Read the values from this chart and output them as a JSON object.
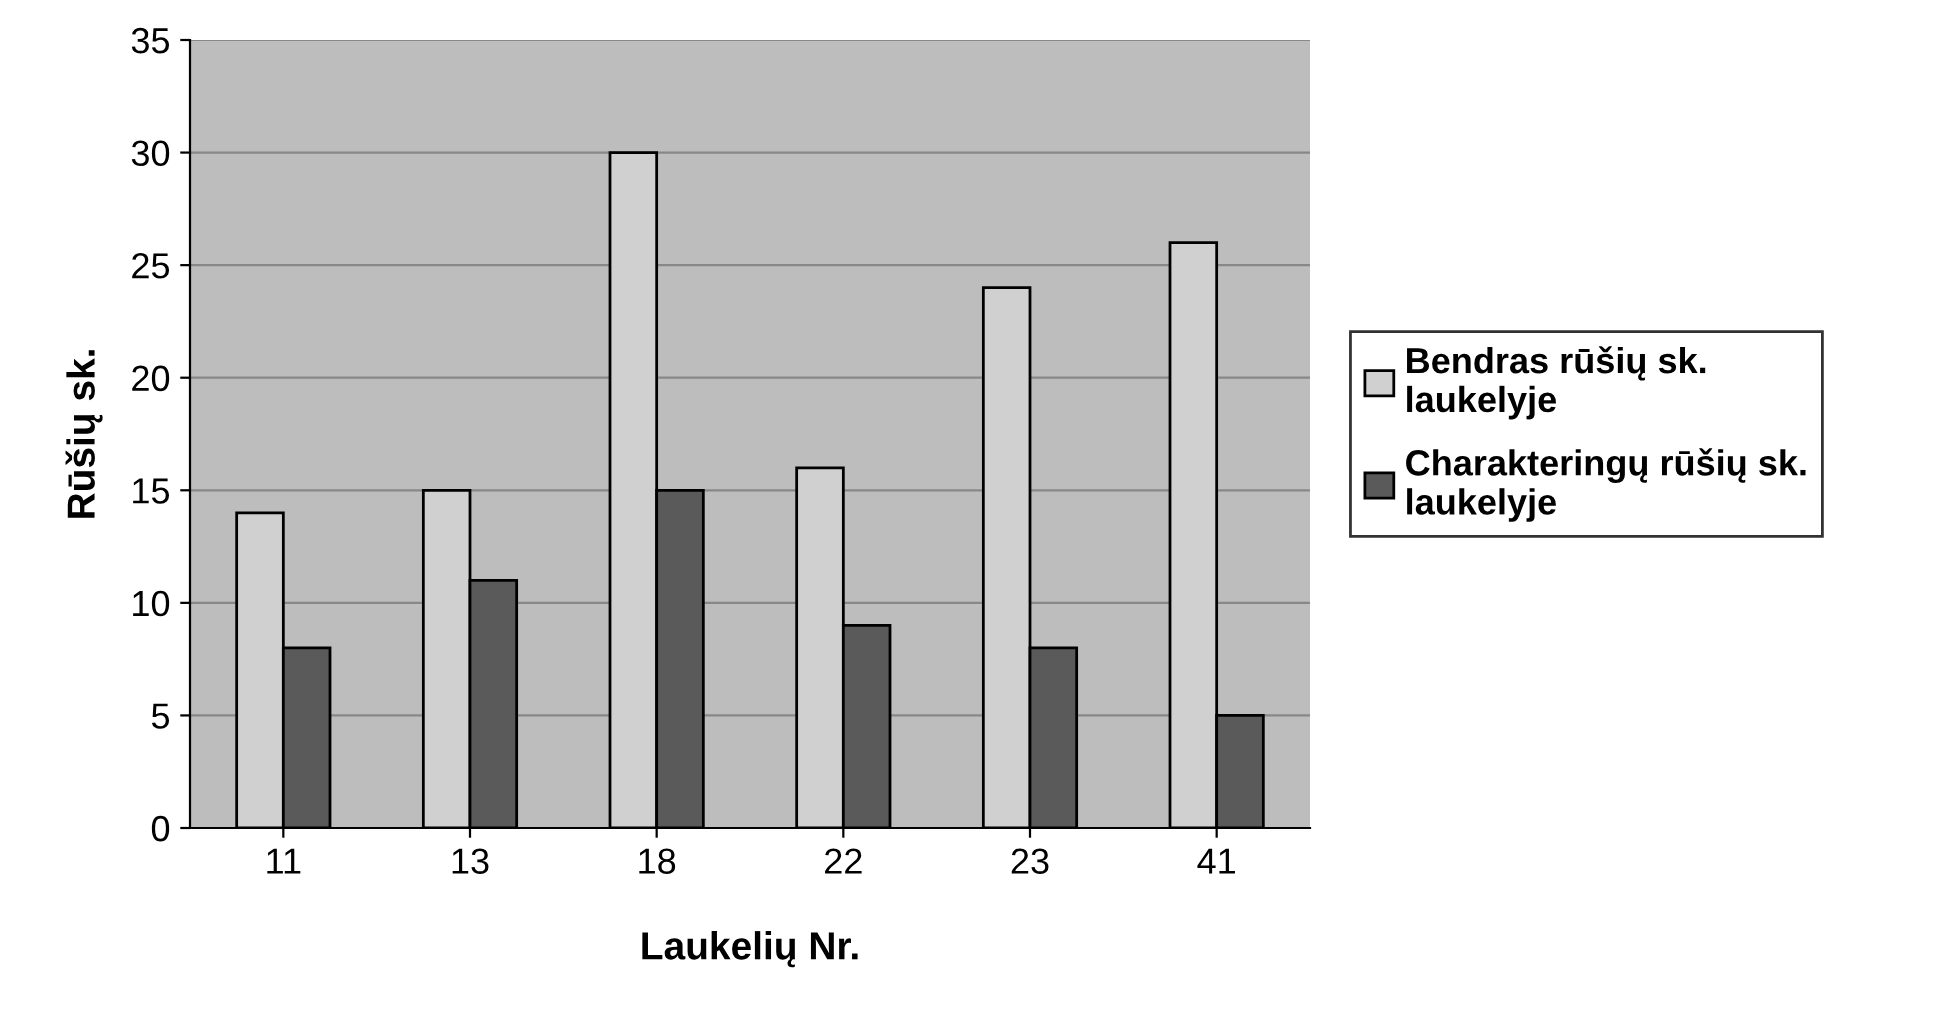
{
  "chart_data": {
    "type": "bar",
    "xlabel": "Laukelių Nr.",
    "ylabel": "Rūšių sk.",
    "categories": [
      "11",
      "13",
      "18",
      "22",
      "23",
      "41"
    ],
    "series": [
      {
        "name": "Bendras rūšių sk.\nlaukelyje",
        "color": "#d0d0d0",
        "values": [
          14,
          15,
          30,
          16,
          24,
          26
        ]
      },
      {
        "name": "Charakteringų rūšių sk.\nlaukelyje",
        "color": "#5a5a5a",
        "values": [
          8,
          11,
          15,
          9,
          8,
          5
        ]
      }
    ],
    "ylim": [
      0,
      35
    ],
    "yticks": [
      0,
      5,
      10,
      15,
      20,
      25,
      30,
      35
    ],
    "grid": "y",
    "legend": "right"
  }
}
